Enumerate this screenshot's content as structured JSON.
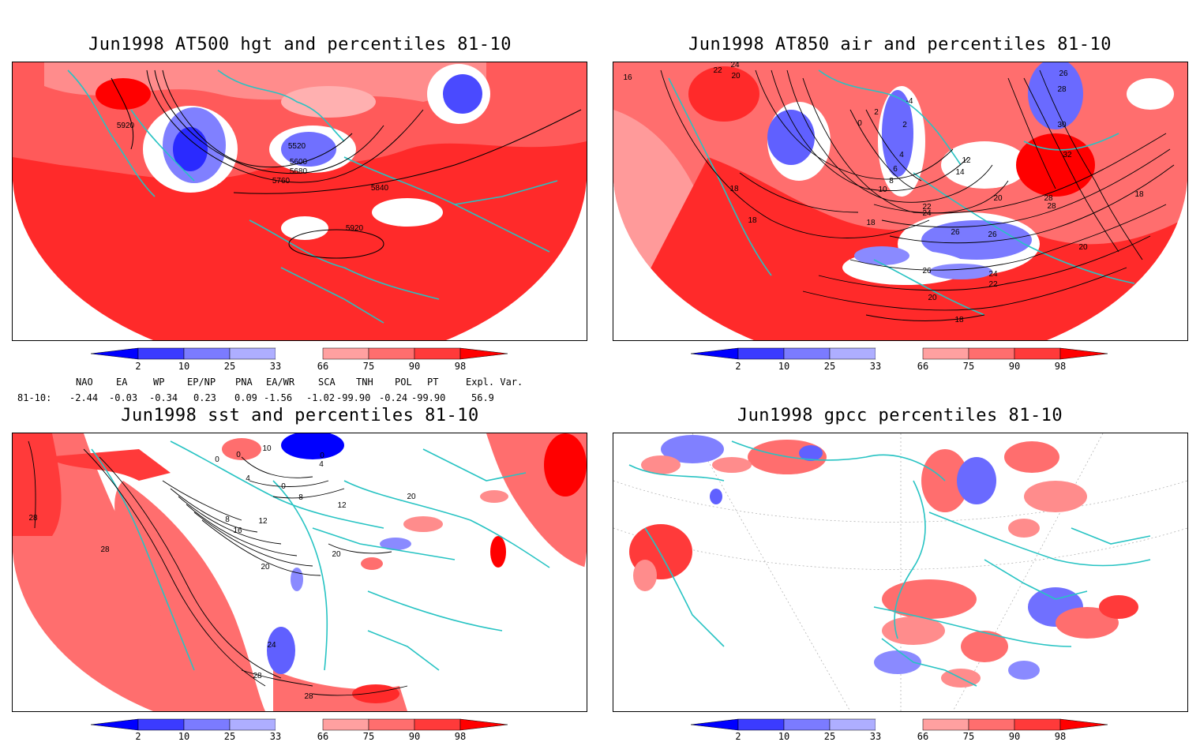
{
  "panels": [
    {
      "title": "Jun1998 AT500 hgt and percentiles 81-10",
      "contour_labels": [
        "5920",
        "5520",
        "5600",
        "5680",
        "5760",
        "5840",
        "5920"
      ]
    },
    {
      "title": "Jun1998 AT850 air and percentiles 81-10",
      "contour_labels": [
        "16",
        "22",
        "20",
        "24",
        "2",
        "-4",
        "0",
        "2",
        "4",
        "6",
        "8",
        "10",
        "12",
        "14",
        "18",
        "18",
        "18",
        "20",
        "22",
        "24",
        "26",
        "26",
        "28",
        "28",
        "28",
        "30",
        "32",
        "26",
        "18",
        "20",
        "22",
        "24",
        "26",
        "20",
        "18"
      ]
    },
    {
      "title": "Jun1998 sst and percentiles 81-10",
      "contour_labels": [
        "0",
        "0",
        "0",
        "10",
        "4",
        "0",
        "4",
        "8",
        "8",
        "12",
        "16",
        "20",
        "12",
        "20",
        "24",
        "28",
        "28",
        "28",
        "28",
        "20"
      ]
    },
    {
      "title": "Jun1998 gpcc percentiles 81-10",
      "contour_labels": []
    }
  ],
  "colorbar": {
    "ticks": [
      "2",
      "10",
      "25",
      "33",
      "66",
      "75",
      "90",
      "98"
    ],
    "colors": {
      "dark_blue": "#0000ff",
      "mid_blue": "#3b3bff",
      "light_blue": "#7b7bff",
      "pale_blue": "#aeaeff",
      "pale_red": "#ffa0a0",
      "light_red": "#ff6e6e",
      "mid_red": "#ff3a3a",
      "dark_red": "#ff0000"
    }
  },
  "indices": {
    "header": [
      "NAO",
      "EA",
      "WP",
      "EP/NP",
      "PNA",
      "EA/WR",
      "SCA",
      "TNH",
      "POL",
      "PT",
      "Expl. Var."
    ],
    "row_label": "81-10:",
    "values": [
      "-2.44",
      "-0.03",
      "-0.34",
      "0.23",
      "0.09",
      "-1.56",
      "-1.02",
      "-99.90",
      "-0.24",
      "-99.90",
      "56.9"
    ]
  },
  "map_colors": {
    "coastline": "#27c3c3",
    "contour": "#000000",
    "grid": "#999999"
  }
}
